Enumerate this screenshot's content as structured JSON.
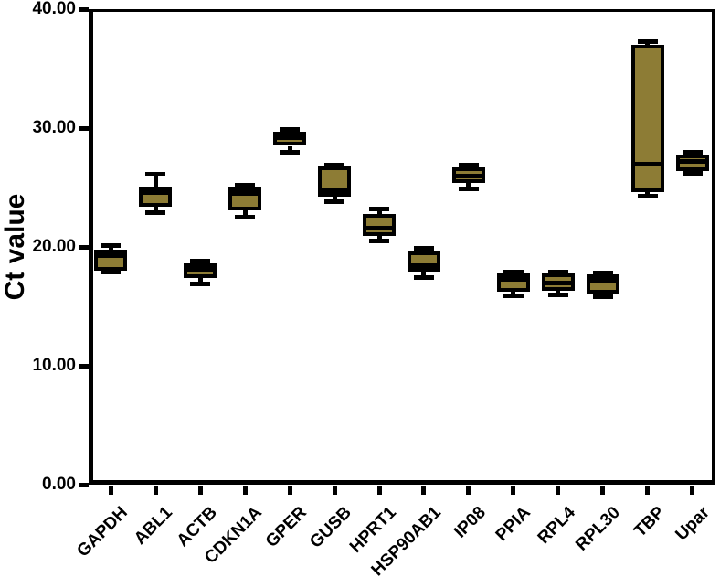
{
  "chart_data": {
    "type": "boxplot",
    "title": "",
    "xlabel": "",
    "ylabel": "Ct value",
    "ylim": [
      0,
      40
    ],
    "ytick_labels": [
      "0.00",
      "10.00",
      "20.00",
      "30.00",
      "40.00"
    ],
    "yticks": [
      0,
      10,
      20,
      30,
      40
    ],
    "grid": false,
    "legend": false,
    "box_fill_color": "#8d7c35",
    "box_border_color": "#000000",
    "categories": [
      "GAPDH",
      "ABL1",
      "ACTB",
      "CDKN1A",
      "GPER",
      "GUSB",
      "HPRT1",
      "HSP90AB1",
      "IP08",
      "PPIA",
      "RPL4",
      "RPL30",
      "TBP",
      "Upar"
    ],
    "boxes": [
      {
        "label": "GAPDH",
        "min": 17.9,
        "q1": 18.0,
        "median": 19.3,
        "q3": 19.8,
        "max": 20.1
      },
      {
        "label": "ABL1",
        "min": 22.9,
        "q1": 23.4,
        "median": 24.8,
        "q3": 25.1,
        "max": 26.1
      },
      {
        "label": "ACTB",
        "min": 16.9,
        "q1": 17.4,
        "median": 18.1,
        "q3": 18.6,
        "max": 18.8
      },
      {
        "label": "CDKN1A",
        "min": 22.5,
        "q1": 23.1,
        "median": 24.7,
        "q3": 25.0,
        "max": 25.2
      },
      {
        "label": "GPER",
        "min": 28.0,
        "q1": 28.5,
        "median": 29.4,
        "q3": 29.7,
        "max": 29.9
      },
      {
        "label": "GUSB",
        "min": 23.8,
        "q1": 24.2,
        "median": 24.7,
        "q3": 26.8,
        "max": 26.9
      },
      {
        "label": "HPRT1",
        "min": 20.5,
        "q1": 20.9,
        "median": 21.6,
        "q3": 22.8,
        "max": 23.2
      },
      {
        "label": "HSP90AB1",
        "min": 17.4,
        "q1": 17.9,
        "median": 18.4,
        "q3": 19.6,
        "max": 19.9
      },
      {
        "label": "IP08",
        "min": 24.9,
        "q1": 25.4,
        "median": 26.0,
        "q3": 26.7,
        "max": 26.9
      },
      {
        "label": "PPIA",
        "min": 15.9,
        "q1": 16.2,
        "median": 17.5,
        "q3": 17.8,
        "max": 17.9
      },
      {
        "label": "RPL4",
        "min": 16.0,
        "q1": 16.3,
        "median": 17.0,
        "q3": 17.8,
        "max": 17.9
      },
      {
        "label": "RPL30",
        "min": 15.8,
        "q1": 16.1,
        "median": 17.4,
        "q3": 17.7,
        "max": 17.8
      },
      {
        "label": "TBP",
        "min": 24.3,
        "q1": 24.6,
        "median": 27.0,
        "q3": 37.0,
        "max": 37.3
      },
      {
        "label": "Upar",
        "min": 26.2,
        "q1": 26.4,
        "median": 27.2,
        "q3": 27.8,
        "max": 28.0
      }
    ]
  }
}
